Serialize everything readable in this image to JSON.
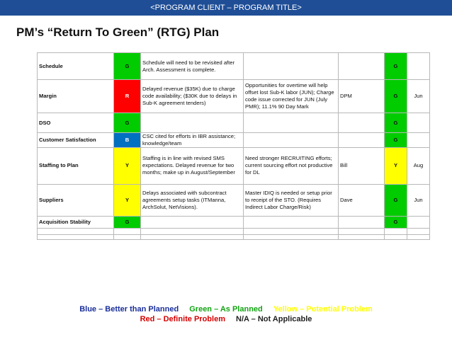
{
  "header": {
    "program": "<PROGRAM CLIENT – PROGRAM TITLE>",
    "title": "PM’s “Return To Green” (RTG) Plan"
  },
  "rows": [
    {
      "metric": "Schedule",
      "status": "G",
      "issue": "Schedule will need to be revisited after Arch. Assessment is complete.",
      "action": "",
      "owner": "",
      "rtg_status": "G",
      "date": ""
    },
    {
      "metric": "Margin",
      "status": "R",
      "issue": "Delayed revenue ($35K) due to charge code availability; ($30K due to delays in Sub-K agreement tenders)",
      "action": "Opportunities for overtime will help offset lost Sub-K labor (JUN); Charge code issue corrected for JUN (July PMR); 11.1% 90 Day Mark",
      "owner": "DPM",
      "rtg_status": "G",
      "date": "Jun"
    },
    {
      "metric": "DSO",
      "status": "G",
      "issue": "",
      "action": "",
      "owner": "",
      "rtg_status": "G",
      "date": ""
    },
    {
      "metric": "Customer Satisfaction",
      "status": "B",
      "issue": "CSC cited for efforts in IBR assistance; knowledge/team",
      "action": "",
      "owner": "",
      "rtg_status": "G",
      "date": ""
    },
    {
      "metric": "Staffing to Plan",
      "status": "Y",
      "issue": "Staffing is in line with revised SMS expectations. Delayed revenue for two months; make up in August/September",
      "action": "Need stronger RECRUITING efforts; current sourcing effort not productive for DL",
      "owner": "Bill",
      "rtg_status": "Y",
      "date": "Aug"
    },
    {
      "metric": "Suppliers",
      "status": "Y",
      "issue": "Delays associated with subcontract agreements setup tasks (ITManna, ArchSolut, NetVisions).",
      "action": "Master IDIQ is needed or setup prior to receipt of the STO. (Requires Indirect Labor Charge/Risk)",
      "owner": "Dave",
      "rtg_status": "G",
      "date": "Jun"
    },
    {
      "metric": "Acquisition Stability",
      "status": "G",
      "issue": "",
      "action": "",
      "owner": "",
      "rtg_status": "G",
      "date": ""
    }
  ],
  "legend": {
    "blue": "Blue – Better than Planned",
    "green": "Green – As Planned",
    "yellow": "Yellow – Potential Problem",
    "red": "Red – Definite Problem",
    "na": "N/A – Not Applicable"
  },
  "colors": {
    "banner": "#1f4e96",
    "G": "#00cc00",
    "R": "#ff0000",
    "B": "#0070c0",
    "Y": "#ffff00"
  }
}
